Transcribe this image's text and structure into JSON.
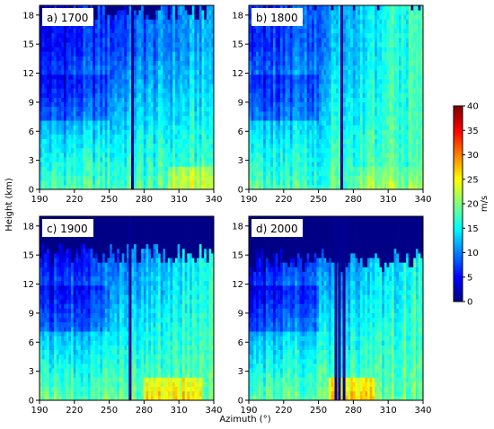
{
  "figure": {
    "ylabel": "Height (km)",
    "xlabel": "Azimuth (°)",
    "colorbar": {
      "label": "m/s",
      "min": 0,
      "max": 40,
      "ticks": [
        "0",
        "5",
        "10",
        "15",
        "20",
        "25",
        "30",
        "35",
        "40"
      ],
      "colormap": "jet"
    }
  },
  "chart_data": [
    {
      "type": "heatmap",
      "panel_label": "a) 1700",
      "xlim": [
        190,
        340
      ],
      "ylim": [
        0,
        19
      ],
      "xticks": [
        "190",
        "220",
        "250",
        "280",
        "310",
        "340"
      ],
      "yticks": [
        "0",
        "3",
        "6",
        "9",
        "12",
        "15",
        "18"
      ],
      "top_mask_base_km": 18.5,
      "gap_azimuths": [
        270
      ],
      "upper_min_ms": 4,
      "upper_max_ms": 12,
      "surface_ms": 18,
      "surface_peak_ms": 23,
      "surface_peak_range": [
        300,
        340
      ]
    },
    {
      "type": "heatmap",
      "panel_label": "b) 1800",
      "xlim": [
        190,
        340
      ],
      "ylim": [
        0,
        19
      ],
      "xticks": [
        "190",
        "220",
        "250",
        "280",
        "310",
        "340"
      ],
      "yticks": [
        "0",
        "3",
        "6",
        "9",
        "12",
        "15",
        "18"
      ],
      "top_mask_base_km": 19.5,
      "gap_azimuths": [
        270
      ],
      "upper_min_ms": 5,
      "upper_max_ms": 18,
      "surface_ms": 18,
      "surface_peak_ms": 21,
      "surface_peak_range": [
        280,
        340
      ]
    },
    {
      "type": "heatmap",
      "panel_label": "c) 1900",
      "xlim": [
        190,
        340
      ],
      "ylim": [
        0,
        19
      ],
      "xticks": [
        "190",
        "220",
        "250",
        "280",
        "310",
        "340"
      ],
      "yticks": [
        "0",
        "3",
        "6",
        "9",
        "12",
        "15",
        "18"
      ],
      "top_mask_base_km": 15.2,
      "gap_azimuths": [
        268
      ],
      "upper_min_ms": 3,
      "upper_max_ms": 16,
      "surface_ms": 19,
      "surface_peak_ms": 26,
      "surface_peak_range": [
        280,
        330
      ]
    },
    {
      "type": "heatmap",
      "panel_label": "d) 2000",
      "xlim": [
        190,
        340
      ],
      "ylim": [
        0,
        19
      ],
      "xticks": [
        "190",
        "220",
        "250",
        "280",
        "310",
        "340"
      ],
      "yticks": [
        "0",
        "3",
        "6",
        "9",
        "12",
        "15",
        "18"
      ],
      "top_mask_base_km": 14.5,
      "gap_azimuths": [
        265,
        268,
        272
      ],
      "upper_min_ms": 3,
      "upper_max_ms": 16,
      "surface_ms": 19,
      "surface_peak_ms": 27,
      "surface_peak_range": [
        258,
        298
      ]
    }
  ]
}
